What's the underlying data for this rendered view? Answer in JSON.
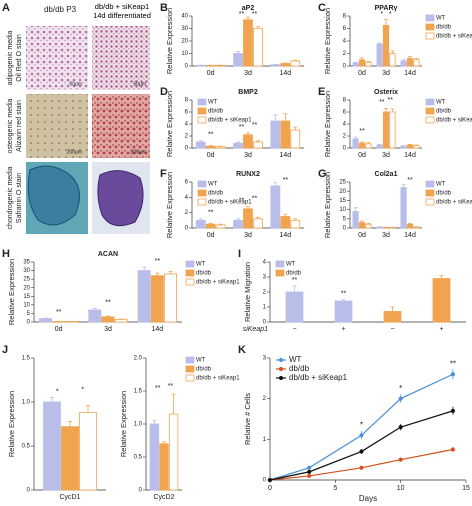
{
  "image_panel": {
    "letter": "A",
    "columns": [
      "db/db P3",
      "db/db + siKeap1 14d differentiated"
    ],
    "rows": [
      [
        "adipogenic media",
        "Oil Red O stain"
      ],
      [
        "osteogenic media",
        "Alizarin red stain"
      ],
      [
        "chondrogenic media",
        "Safranin O stain"
      ]
    ],
    "scale_labels": [
      "50μm",
      "50μm",
      "200μm",
      "200μm"
    ]
  },
  "chart_data": [
    {
      "type": "bar",
      "letter": "B",
      "title": "aP2",
      "ylabel": "Relative Expression",
      "categories": [
        "0d",
        "3d",
        "14d"
      ],
      "ylim": [
        0,
        40
      ],
      "yticks": [
        0,
        10,
        20,
        30,
        40
      ],
      "series": [
        {
          "color": "#b9bdea",
          "values": [
            0.5,
            10,
            1
          ],
          "errors": [
            0.2,
            1.5,
            0.3
          ]
        },
        {
          "color": "#f0a450",
          "values": [
            0.5,
            37,
            2
          ],
          "errors": [
            0.2,
            2,
            0.4
          ]
        },
        {
          "color": "#ffffff",
          "edgecolor": "#f0a450",
          "values": [
            0.5,
            30,
            4
          ],
          "errors": [
            0.2,
            1.5,
            0.6
          ]
        }
      ],
      "annotations": [
        {
          "label": "**",
          "category": "3d"
        },
        {
          "label": "**",
          "category": "3d"
        }
      ]
    },
    {
      "type": "bar",
      "letter": "C",
      "title": "PPARγ",
      "ylabel": "Relative Expression",
      "categories": [
        "0d",
        "3d",
        "14d"
      ],
      "ylim": [
        0,
        8
      ],
      "yticks": [
        0,
        2,
        4,
        6,
        8
      ],
      "legend": "right",
      "series": [
        {
          "name": "WT",
          "color": "#b9bdea",
          "values": [
            0.5,
            3.5,
            0.8
          ],
          "errors": [
            0.1,
            0.2,
            0.2
          ]
        },
        {
          "name": "db/db",
          "color": "#f0a450",
          "values": [
            1,
            6.5,
            1.2
          ],
          "errors": [
            0.3,
            0.9,
            0.3
          ]
        },
        {
          "name": "db/db + siKeap1",
          "color": "#ffffff",
          "edgecolor": "#f0a450",
          "values": [
            0.6,
            2,
            1
          ],
          "errors": [
            0.1,
            0.4,
            0.2
          ]
        }
      ],
      "annotations": [
        {
          "label": "*",
          "category": "3d"
        },
        {
          "label": "*",
          "category": "3d"
        }
      ]
    },
    {
      "type": "bar",
      "letter": "D",
      "title": "BMP2",
      "ylabel": "Relative Expression",
      "categories": [
        "0d",
        "3d",
        "14d"
      ],
      "ylim": [
        0,
        8
      ],
      "yticks": [
        0,
        2,
        4,
        6,
        8
      ],
      "legend": "upper-left",
      "series": [
        {
          "name": "WT",
          "color": "#b9bdea",
          "values": [
            1,
            0.8,
            4.5
          ],
          "errors": [
            0.2,
            0.2,
            1
          ]
        },
        {
          "name": "db/db",
          "color": "#f0a450",
          "values": [
            0.3,
            2.2,
            4.5
          ],
          "errors": [
            0.1,
            0.3,
            1.2
          ]
        },
        {
          "name": "db/db + siKeap1",
          "color": "#ffffff",
          "edgecolor": "#f0a450",
          "values": [
            0.2,
            1,
            3
          ],
          "errors": [
            0.1,
            0.2,
            0.5
          ]
        }
      ],
      "annotations": [
        {
          "label": "**",
          "category": "0d"
        },
        {
          "label": "**",
          "category": "3d"
        },
        {
          "label": "**",
          "category": "3d"
        }
      ]
    },
    {
      "type": "bar",
      "letter": "E",
      "title": "Osterix",
      "ylabel": "Relative Expression",
      "categories": [
        "0d",
        "3d",
        "14d"
      ],
      "ylim": [
        0,
        8
      ],
      "yticks": [
        0,
        2,
        4,
        6,
        8
      ],
      "legend": "right",
      "series": [
        {
          "name": "WT",
          "color": "#b9bdea",
          "values": [
            1.5,
            0.5,
            0.3
          ],
          "errors": [
            0.3,
            0.1,
            0.1
          ]
        },
        {
          "name": "db/db",
          "color": "#f0a450",
          "values": [
            0.8,
            6,
            0.5
          ],
          "errors": [
            0.2,
            0.6,
            0.1
          ]
        },
        {
          "name": "db/db + siKeap1",
          "color": "#ffffff",
          "edgecolor": "#f0a450",
          "values": [
            0.7,
            6,
            0.4
          ],
          "errors": [
            0.2,
            0.5,
            0.1
          ]
        }
      ],
      "annotations": [
        {
          "label": "**",
          "category": "0d"
        },
        {
          "label": "**",
          "category": "3d"
        },
        {
          "label": "**",
          "category": "3d"
        }
      ]
    },
    {
      "type": "bar",
      "letter": "F",
      "title": "RUNX2",
      "ylabel": "Relative Expression",
      "categories": [
        "0d",
        "3d",
        "14d"
      ],
      "ylim": [
        0,
        6
      ],
      "yticks": [
        0,
        2,
        4,
        6
      ],
      "legend": "upper-left",
      "series": [
        {
          "name": "WT",
          "color": "#b9bdea",
          "values": [
            1,
            1,
            5.5
          ],
          "errors": [
            0.2,
            0.2,
            0.4
          ]
        },
        {
          "name": "db/db",
          "color": "#f0a450",
          "values": [
            0.5,
            2.5,
            1.5
          ],
          "errors": [
            0.1,
            0.3,
            0.3
          ]
        },
        {
          "name": "db/db + siKeap1",
          "color": "#ffffff",
          "edgecolor": "#f0a450",
          "values": [
            0.4,
            1.2,
            1
          ],
          "errors": [
            0.1,
            0.2,
            0.2
          ]
        }
      ],
      "annotations": [
        {
          "label": "**",
          "category": "0d"
        },
        {
          "label": "**",
          "category": "3d"
        },
        {
          "label": "**",
          "category": "3d"
        },
        {
          "label": "**",
          "category": "14d"
        }
      ]
    },
    {
      "type": "bar",
      "letter": "G",
      "title": "Col2a1",
      "ylabel": "Relative Expression",
      "categories": [
        "0d",
        "3d",
        "14d"
      ],
      "ylim": [
        0,
        25
      ],
      "yticks": [
        0,
        5,
        10,
        15,
        20,
        25
      ],
      "legend": "right",
      "series": [
        {
          "name": "WT",
          "color": "#b9bdea",
          "values": [
            9,
            0.5,
            22
          ],
          "errors": [
            2,
            0.2,
            1.5
          ]
        },
        {
          "name": "db/db",
          "color": "#f0a450",
          "values": [
            3,
            0.3,
            2
          ],
          "errors": [
            0.8,
            0.1,
            0.4
          ]
        },
        {
          "name": "db/db + siKeap1",
          "color": "#ffffff",
          "edgecolor": "#f0a450",
          "values": [
            2,
            0.3,
            0.5
          ],
          "errors": [
            0.5,
            0.1,
            0.2
          ]
        }
      ],
      "annotations": [
        {
          "label": "**",
          "category": "14d"
        }
      ]
    },
    {
      "type": "bar",
      "letter": "H",
      "title": "ACAN",
      "ylabel": "Relative Expression",
      "categories": [
        "0d",
        "3d",
        "14d"
      ],
      "ylim": [
        0,
        35
      ],
      "yticks": [
        0,
        5,
        10,
        15,
        20,
        25,
        30,
        35
      ],
      "legend": "right",
      "series": [
        {
          "name": "WT",
          "color": "#b9bdea",
          "values": [
            2,
            7,
            30
          ],
          "errors": [
            0.3,
            0.8,
            2
          ]
        },
        {
          "name": "db/db",
          "color": "#f0a450",
          "values": [
            0.3,
            3,
            27
          ],
          "errors": [
            0.1,
            0.4,
            1.5
          ]
        },
        {
          "name": "db/db + siKeap1",
          "color": "#ffffff",
          "edgecolor": "#f0a450",
          "values": [
            0.3,
            1.5,
            28
          ],
          "errors": [
            0.1,
            0.3,
            1.5
          ]
        }
      ],
      "annotations": [
        {
          "label": "**",
          "category": "0d"
        },
        {
          "label": "**",
          "category": "3d"
        },
        {
          "label": "**",
          "category": "14d"
        }
      ]
    },
    {
      "type": "bar",
      "letter": "I",
      "ylabel": "Relative Migration",
      "xlabel": "siKeap1",
      "categories": [
        "−",
        "+",
        "−",
        "+"
      ],
      "ylim": [
        0,
        4
      ],
      "yticks": [
        0,
        1,
        2,
        3,
        4
      ],
      "legend": "upper-left",
      "series": [
        {
          "name": "WT",
          "color": "#b9bdea",
          "values": [
            2,
            1.4,
            null,
            null
          ],
          "errors": [
            0.4,
            0.1,
            null,
            null
          ]
        },
        {
          "name": "db/db",
          "color": "#f0a450",
          "values": [
            null,
            null,
            0.7,
            2.9
          ],
          "errors": [
            null,
            null,
            0.3,
            0.2
          ]
        }
      ],
      "annotations": [
        {
          "label": "**",
          "category": "−"
        },
        {
          "label": "**",
          "category": "+"
        }
      ]
    },
    {
      "type": "bar",
      "letter": "J",
      "ylabel": "Relative Expression",
      "categories": [
        "CycD1"
      ],
      "ylim": [
        0,
        1.5
      ],
      "yticks": [
        0,
        0.5,
        {
          "value": 1,
          "label": "1.0"
        },
        1.5
      ],
      "series": [
        {
          "color": "#b9bdea",
          "values": [
            1
          ],
          "errors": [
            0.05
          ]
        },
        {
          "color": "#f0a450",
          "values": [
            0.72
          ],
          "errors": [
            0.06
          ]
        },
        {
          "color": "#ffffff",
          "edgecolor": "#f0a450",
          "values": [
            0.88
          ],
          "errors": [
            0.08
          ]
        }
      ],
      "annotations": [
        {
          "label": "*",
          "category": "CycD1"
        },
        {
          "label": "*",
          "category": "CycD1"
        }
      ]
    },
    {
      "type": "bar",
      "ylabel": "Relative Expression",
      "categories": [
        "CycD2"
      ],
      "ylim": [
        0,
        2
      ],
      "yticks": [
        0,
        0.5,
        {
          "value": 1,
          "label": "1.0"
        },
        1.5,
        {
          "value": 2,
          "label": "2.0"
        }
      ],
      "legend": "right",
      "series": [
        {
          "name": "WT",
          "color": "#b9bdea",
          "values": [
            1
          ],
          "errors": [
            0.05
          ]
        },
        {
          "name": "db/db",
          "color": "#f0a450",
          "values": [
            0.7
          ],
          "errors": [
            0.03
          ]
        },
        {
          "name": "db/db + siKeap1",
          "color": "#ffffff",
          "edgecolor": "#f0a450",
          "values": [
            1.15
          ],
          "errors": [
            0.3
          ]
        }
      ],
      "annotations": [
        {
          "label": "**",
          "category": "CycD2"
        },
        {
          "label": "**",
          "category": "CycD2"
        }
      ]
    },
    {
      "type": "line",
      "letter": "K",
      "ylabel": "Relative # Cells",
      "xlabel": "Days",
      "x": [
        0,
        3,
        7,
        10,
        14
      ],
      "xlim": [
        0,
        15
      ],
      "xticks": [
        0,
        5,
        10,
        15
      ],
      "ylim": [
        0,
        3
      ],
      "yticks": [
        0,
        1,
        2,
        3
      ],
      "legend": "upper-left",
      "series": [
        {
          "name": "WT",
          "color": "#4a90d9",
          "values": [
            0,
            0.3,
            1.1,
            2,
            2.6
          ],
          "errors": [
            0,
            0.05,
            0.1,
            0.1,
            0.12
          ]
        },
        {
          "name": "db/db",
          "color": "#d4501e",
          "values": [
            0,
            0.1,
            0.3,
            0.5,
            0.75
          ],
          "errors": [
            0,
            0.02,
            0.04,
            0.05,
            0.06
          ]
        },
        {
          "name": "db/db + siKeap1",
          "color": "#111111",
          "values": [
            0,
            0.2,
            0.7,
            1.3,
            1.7
          ],
          "errors": [
            0,
            0.03,
            0.06,
            0.08,
            0.1
          ]
        }
      ],
      "annotations": [
        {
          "label": "*",
          "x": 7
        },
        {
          "label": "*",
          "x": 10
        },
        {
          "label": "**",
          "x": 14
        }
      ]
    }
  ]
}
